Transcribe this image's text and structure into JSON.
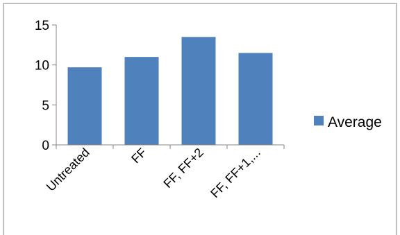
{
  "chart_data": {
    "type": "bar",
    "categories": [
      "Untreated",
      "FF",
      "FF, FF+2",
      "FF, FF+1,..."
    ],
    "series": [
      {
        "name": "Average",
        "values": [
          9.7,
          11.0,
          13.5,
          11.5
        ],
        "color": "#4f81bd"
      }
    ],
    "ylim": [
      0,
      15
    ],
    "yticks": [
      "0",
      "5",
      "10",
      "15"
    ],
    "grid": false,
    "legend": "right",
    "title": "",
    "xlabel": "",
    "ylabel": ""
  }
}
